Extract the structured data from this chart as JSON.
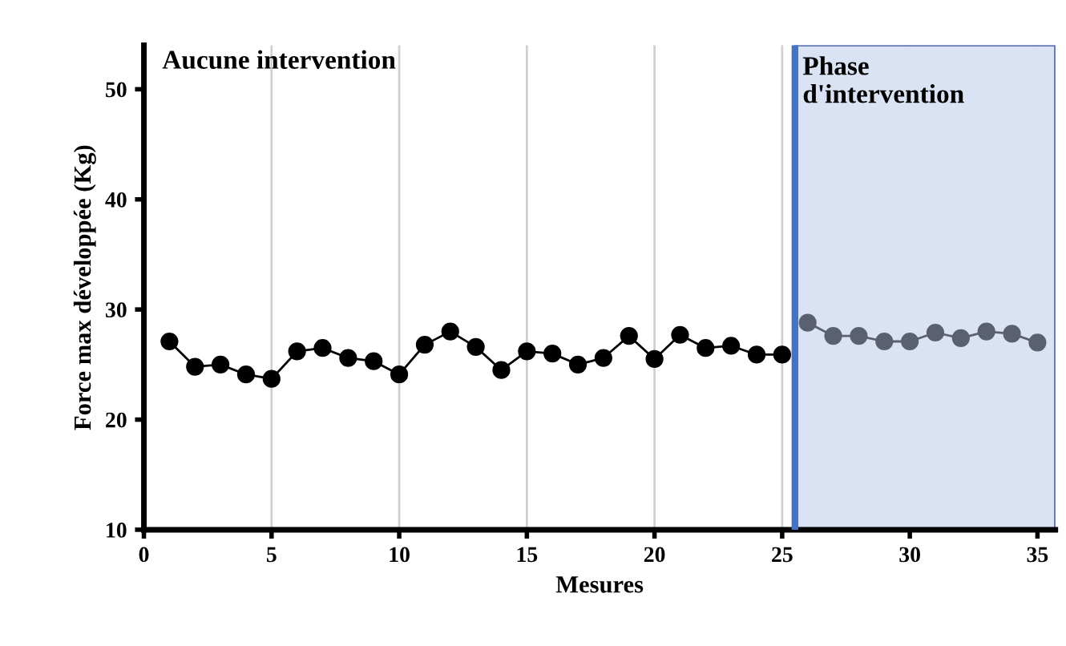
{
  "chart_data": {
    "type": "line",
    "xlabel": "Mesures",
    "ylabel": "Force max développée (Kg)",
    "annotations": [
      "Aucune intervention"
    ],
    "series": [
      {
        "color": "#000000",
        "x": [
          1,
          2,
          3,
          4,
          5,
          6,
          7,
          8,
          9,
          10,
          11,
          12,
          13,
          14,
          15,
          16,
          17,
          18,
          19,
          20,
          21,
          22,
          23,
          24,
          25
        ],
        "values": [
          27.1,
          24.8,
          25.0,
          24.1,
          23.7,
          26.2,
          26.5,
          25.6,
          25.3,
          24.1,
          26.8,
          28.0,
          26.6,
          24.5,
          26.2,
          26.0,
          25.0,
          25.6,
          27.6,
          25.5,
          27.7,
          26.5,
          26.7,
          25.9,
          25.9
        ]
      },
      {
        "color": "#5a6070",
        "x": [
          26,
          27,
          28,
          29,
          30,
          31,
          32,
          33,
          34,
          35
        ],
        "values": [
          28.8,
          27.6,
          27.6,
          27.1,
          27.1,
          27.9,
          27.4,
          28.0,
          27.8,
          27.0
        ]
      }
    ],
    "bands": [
      {
        "axis": "x",
        "from": 25.5,
        "to": 35.7,
        "label": "Phase\nd'intervention",
        "color": "#dae3f3"
      }
    ],
    "ref_lines": [
      {
        "axis": "x",
        "value": 25.5,
        "color": "#4472c4"
      }
    ],
    "xlim": [
      0,
      35.7
    ],
    "ylim": [
      10,
      54
    ],
    "xticks": [
      0,
      5,
      10,
      15,
      20,
      25,
      30,
      35
    ],
    "yticks": [
      10,
      20,
      30,
      40,
      50
    ],
    "grid": "x",
    "marker": "circle",
    "line_style": "solid",
    "legend": false
  }
}
